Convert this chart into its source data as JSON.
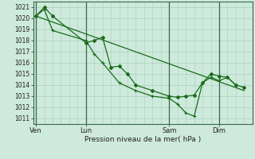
{
  "background_color": "#ceeadc",
  "grid_color": "#aacfbe",
  "line_color": "#1a6b1a",
  "marker_color": "#1a6b1a",
  "xlabel": "Pression niveau de la mer( hPa )",
  "ylim": [
    1010.5,
    1021.5
  ],
  "yticks": [
    1011,
    1012,
    1013,
    1014,
    1015,
    1016,
    1017,
    1018,
    1019,
    1020,
    1021
  ],
  "xtick_labels": [
    "Ven",
    "Lun",
    "Sam",
    "Dim"
  ],
  "xtick_positions": [
    0,
    36,
    96,
    132
  ],
  "vline_positions": [
    0,
    36,
    96,
    132
  ],
  "xlim": [
    -2,
    156
  ],
  "series1_x": [
    0,
    6,
    12,
    36,
    42,
    48,
    54,
    60,
    66,
    72,
    84,
    96,
    102,
    108,
    114,
    120,
    126,
    132,
    138,
    144,
    150
  ],
  "series1_y": [
    1020.2,
    1021.0,
    1020.2,
    1017.8,
    1018.0,
    1018.3,
    1015.6,
    1015.7,
    1015.0,
    1014.0,
    1013.5,
    1013.0,
    1012.9,
    1013.0,
    1013.1,
    1014.2,
    1015.0,
    1014.8,
    1014.7,
    1014.0,
    1013.8
  ],
  "series2_x": [
    0,
    6,
    12,
    36,
    42,
    48,
    60,
    72,
    84,
    96,
    102,
    108,
    114,
    120,
    126,
    132,
    138,
    144
  ],
  "series2_y": [
    1020.2,
    1020.8,
    1018.9,
    1018.0,
    1016.8,
    1016.0,
    1014.2,
    1013.5,
    1013.0,
    1012.8,
    1012.3,
    1011.5,
    1011.2,
    1014.2,
    1014.7,
    1014.4,
    1014.7,
    1014.0
  ],
  "series3_x": [
    0,
    150
  ],
  "series3_y": [
    1020.2,
    1013.5
  ]
}
